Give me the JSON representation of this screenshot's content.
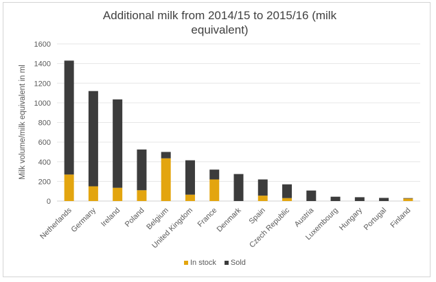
{
  "chart_data": {
    "type": "bar",
    "stacked": true,
    "title": "Additional milk from 2014/15 to 2015/16 (milk equivalent)",
    "title_lines": [
      "Additional milk from 2014/15 to 2015/16 (milk",
      "equivalent)"
    ],
    "xlabel": "",
    "ylabel": "Milk volume/milk equivalent in ml",
    "ylim": [
      0,
      1600
    ],
    "yticks": [
      0,
      200,
      400,
      600,
      800,
      1000,
      1200,
      1400,
      1600
    ],
    "grid": true,
    "legend_position": "bottom",
    "categories": [
      "Netherlands",
      "Germany",
      "Ireland",
      "Poland",
      "Belgium",
      "United Kingdom",
      "France",
      "Denmark",
      "Spain",
      "Czech Republic",
      "Austria",
      "Luxembourg",
      "Hungary",
      "Portugal",
      "Finland"
    ],
    "series": [
      {
        "name": "In stock",
        "color": "#e3a50f",
        "values": [
          270,
          150,
          135,
          110,
          435,
          65,
          220,
          0,
          55,
          30,
          0,
          0,
          0,
          0,
          25
        ]
      },
      {
        "name": "Sold",
        "color": "#3c3c3c",
        "values": [
          1160,
          970,
          900,
          415,
          65,
          350,
          100,
          275,
          165,
          140,
          107,
          44,
          39,
          32,
          5
        ]
      }
    ]
  }
}
